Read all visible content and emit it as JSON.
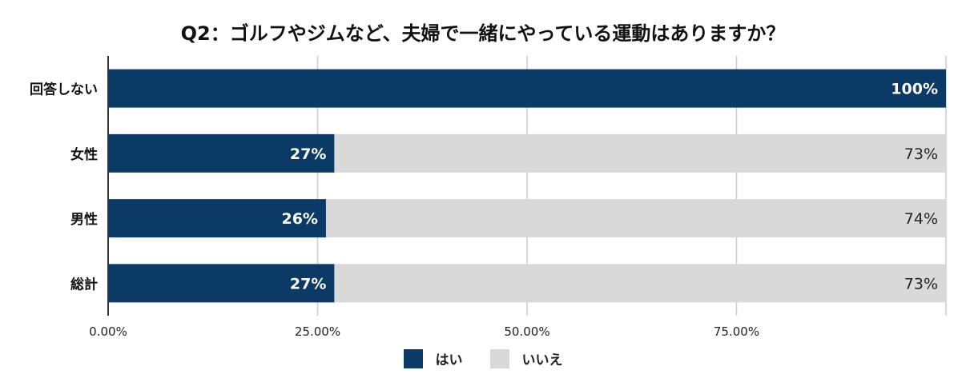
{
  "chart_data": {
    "type": "bar",
    "orientation": "horizontal",
    "stacked": true,
    "title": "Q2：ゴルフやジムなど、夫婦で一緒にやっている運動はありますか？",
    "categories": [
      "回答しない",
      "女性",
      "男性",
      "総計"
    ],
    "series": [
      {
        "name": "はい",
        "values": [
          100,
          27,
          26,
          27
        ],
        "labels": [
          "100%",
          "27%",
          "26%",
          "27%"
        ],
        "color": "#0b3a66"
      },
      {
        "name": "いいえ",
        "values": [
          0,
          73,
          74,
          73
        ],
        "labels": [
          "",
          "73%",
          "74%",
          "73%"
        ],
        "color": "#d9d9d9"
      }
    ],
    "xlim": [
      0,
      100
    ],
    "xticks": [
      0,
      25,
      50,
      75
    ],
    "xtick_labels": [
      "0.00%",
      "25.00%",
      "50.00%",
      "75.00%"
    ],
    "grid": true,
    "legend_position": "bottom"
  }
}
